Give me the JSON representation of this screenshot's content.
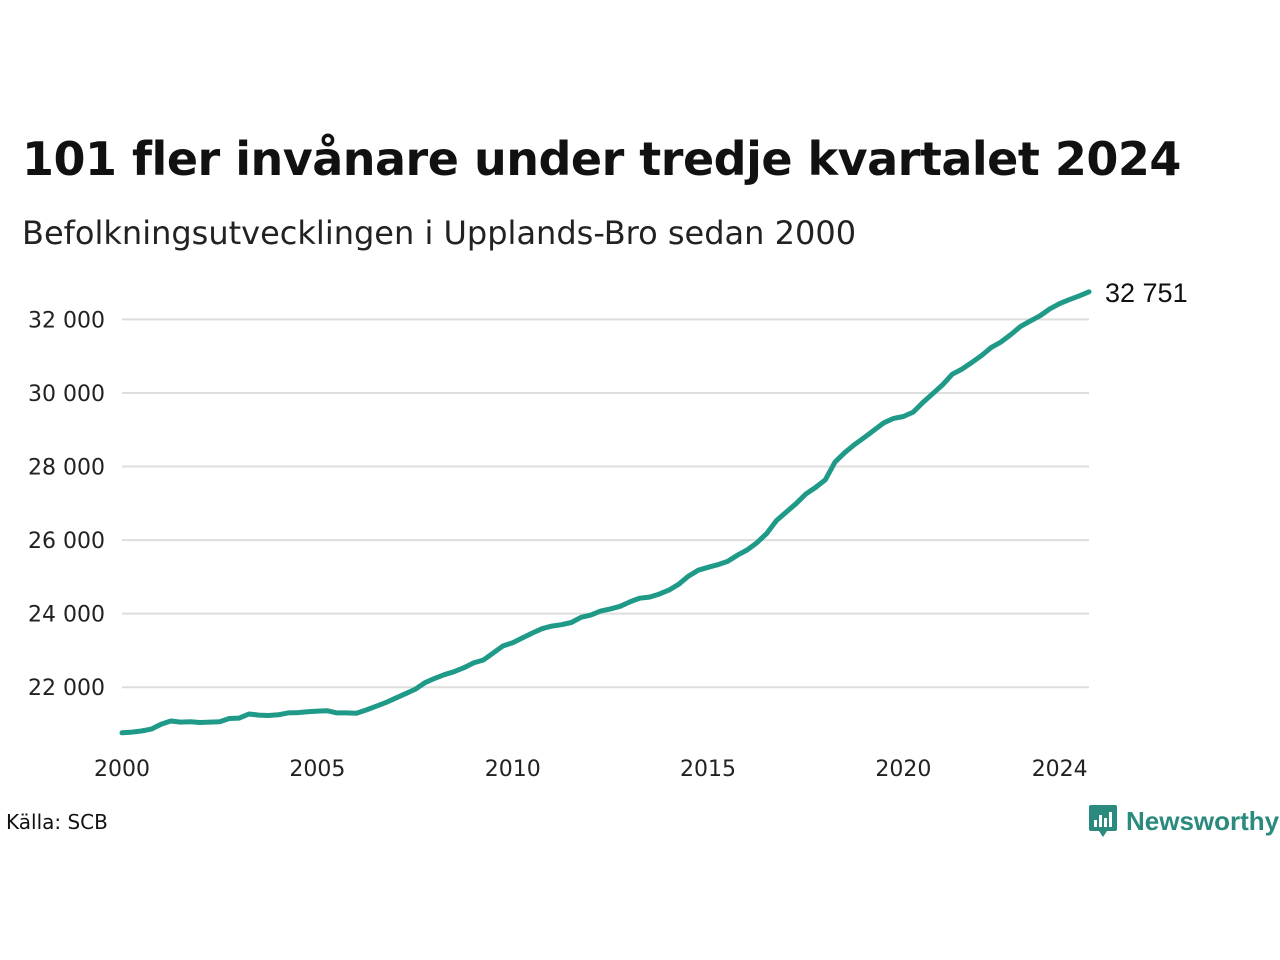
{
  "header": {
    "title": "101 fler invånare under tredje kvartalet 2024",
    "subtitle": "Befolkningsutvecklingen i Upplands-Bro sedan 2000"
  },
  "footer": {
    "source": "Källa: SCB",
    "brand": "Newsworthy"
  },
  "colors": {
    "line": "#1f9a88",
    "grid": "#dddddd",
    "brand": "#2a8a7d"
  },
  "chart_data": {
    "type": "line",
    "title": "101 fler invånare under tredje kvartalet 2024",
    "subtitle": "Befolkningsutvecklingen i Upplands-Bro sedan 2000",
    "xlabel": "",
    "ylabel": "",
    "xlim": [
      2000,
      2024.75
    ],
    "ylim": [
      20700,
      32800
    ],
    "xticks": [
      2000,
      2005,
      2010,
      2015,
      2020,
      2024
    ],
    "yticks": [
      22000,
      24000,
      26000,
      28000,
      30000,
      32000
    ],
    "ytick_labels": [
      "22 000",
      "24 000",
      "26 000",
      "28 000",
      "30 000",
      "32 000"
    ],
    "grid": "horizontal",
    "end_label": "32 751",
    "series": [
      {
        "name": "",
        "x": [
          2000.0,
          2000.25,
          2000.5,
          2000.75,
          2001.0,
          2001.25,
          2001.5,
          2001.75,
          2002.0,
          2002.25,
          2002.5,
          2002.75,
          2003.0,
          2003.25,
          2003.5,
          2003.75,
          2004.0,
          2004.25,
          2004.5,
          2004.75,
          2005.0,
          2005.25,
          2005.5,
          2005.75,
          2006.0,
          2006.25,
          2006.5,
          2006.75,
          2007.0,
          2007.25,
          2007.5,
          2007.75,
          2008.0,
          2008.25,
          2008.5,
          2008.75,
          2009.0,
          2009.25,
          2009.5,
          2009.75,
          2010.0,
          2010.25,
          2010.5,
          2010.75,
          2011.0,
          2011.25,
          2011.5,
          2011.75,
          2012.0,
          2012.25,
          2012.5,
          2012.75,
          2013.0,
          2013.25,
          2013.5,
          2013.75,
          2014.0,
          2014.25,
          2014.5,
          2014.75,
          2015.0,
          2015.25,
          2015.5,
          2015.75,
          2016.0,
          2016.25,
          2016.5,
          2016.75,
          2017.0,
          2017.25,
          2017.5,
          2017.75,
          2018.0,
          2018.25,
          2018.5,
          2018.75,
          2019.0,
          2019.25,
          2019.5,
          2019.75,
          2020.0,
          2020.25,
          2020.5,
          2020.75,
          2021.0,
          2021.25,
          2021.5,
          2021.75,
          2022.0,
          2022.25,
          2022.5,
          2022.75,
          2023.0,
          2023.25,
          2023.5,
          2023.75,
          2024.0,
          2024.25,
          2024.5,
          2024.75
        ],
        "y": [
          20760,
          20780,
          20810,
          20860,
          20990,
          21080,
          21050,
          21060,
          21040,
          21050,
          21060,
          21150,
          21160,
          21270,
          21240,
          21230,
          21250,
          21300,
          21310,
          21330,
          21350,
          21360,
          21300,
          21300,
          21290,
          21380,
          21480,
          21580,
          21700,
          21820,
          21940,
          22120,
          22240,
          22340,
          22420,
          22530,
          22660,
          22740,
          22930,
          23120,
          23210,
          23340,
          23470,
          23590,
          23660,
          23700,
          23760,
          23900,
          23960,
          24070,
          24130,
          24200,
          24320,
          24420,
          24450,
          24530,
          24640,
          24800,
          25020,
          25180,
          25260,
          25330,
          25420,
          25590,
          25730,
          25930,
          26180,
          26530,
          26760,
          26990,
          27250,
          27430,
          27640,
          28120,
          28380,
          28600,
          28790,
          28990,
          29190,
          29310,
          29360,
          29480,
          29740,
          29980,
          30220,
          30510,
          30650,
          30830,
          31020,
          31240,
          31390,
          31590,
          31810,
          31960,
          32100,
          32290,
          32430,
          32540,
          32640,
          32751
        ]
      }
    ]
  }
}
